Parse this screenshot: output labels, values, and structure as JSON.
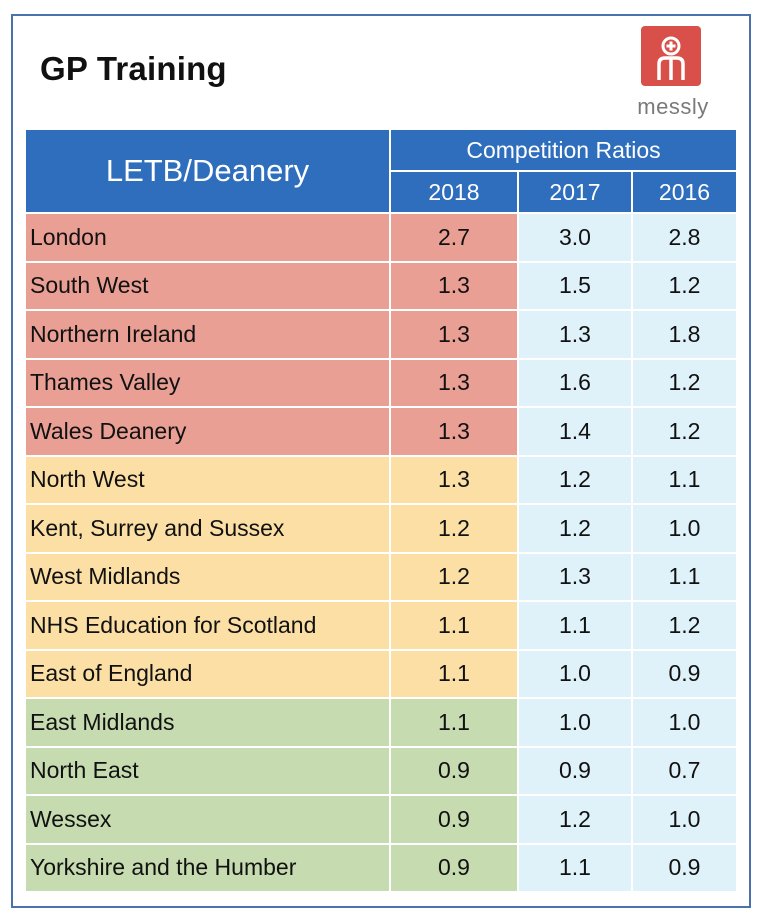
{
  "title": "GP Training",
  "logo": {
    "text": "messly",
    "color": "#d9504a"
  },
  "colors": {
    "header": "#2e6ebd",
    "high": "#e99f93",
    "medium": "#fbdfa4",
    "low": "#c6dbb0",
    "light": "#dff2f9"
  },
  "chart_data": {
    "type": "table",
    "title": "GP Training",
    "row_header": "LETB/Deanery",
    "group_header": "Competition Ratios",
    "columns": [
      "2018",
      "2017",
      "2016"
    ],
    "rows": [
      {
        "name": "London",
        "values": [
          "2.7",
          "3.0",
          "2.8"
        ],
        "band": "high"
      },
      {
        "name": "South West",
        "values": [
          "1.3",
          "1.5",
          "1.2"
        ],
        "band": "high"
      },
      {
        "name": "Northern Ireland",
        "values": [
          "1.3",
          "1.3",
          "1.8"
        ],
        "band": "high"
      },
      {
        "name": "Thames Valley",
        "values": [
          "1.3",
          "1.6",
          "1.2"
        ],
        "band": "high"
      },
      {
        "name": "Wales Deanery",
        "values": [
          "1.3",
          "1.4",
          "1.2"
        ],
        "band": "high"
      },
      {
        "name": "North West",
        "values": [
          "1.3",
          "1.2",
          "1.1"
        ],
        "band": "medium"
      },
      {
        "name": "Kent, Surrey and Sussex",
        "values": [
          "1.2",
          "1.2",
          "1.0"
        ],
        "band": "medium"
      },
      {
        "name": "West Midlands",
        "values": [
          "1.2",
          "1.3",
          "1.1"
        ],
        "band": "medium"
      },
      {
        "name": "NHS Education for Scotland",
        "values": [
          "1.1",
          "1.1",
          "1.2"
        ],
        "band": "medium"
      },
      {
        "name": "East of England",
        "values": [
          "1.1",
          "1.0",
          "0.9"
        ],
        "band": "medium"
      },
      {
        "name": "East Midlands",
        "values": [
          "1.1",
          "1.0",
          "1.0"
        ],
        "band": "low"
      },
      {
        "name": "North East",
        "values": [
          "0.9",
          "0.9",
          "0.7"
        ],
        "band": "low"
      },
      {
        "name": "Wessex",
        "values": [
          "0.9",
          "1.2",
          "1.0"
        ],
        "band": "low"
      },
      {
        "name": "Yorkshire and the Humber",
        "values": [
          "0.9",
          "1.1",
          "0.9"
        ],
        "band": "low"
      }
    ]
  }
}
